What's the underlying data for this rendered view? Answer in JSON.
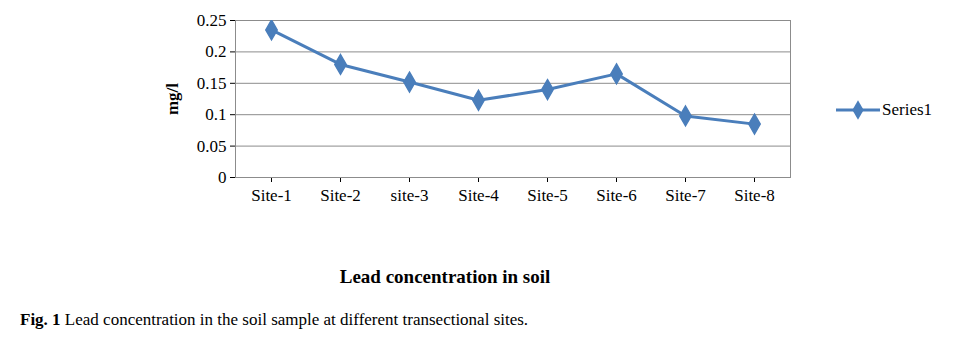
{
  "chart_data": {
    "type": "line",
    "title": "Lead concentration in soil",
    "caption": "Fig. 1 Lead concentration in the soil sample at different transectional sites.",
    "ylabel": "mg/l",
    "categories": [
      "Site-1",
      "Site-2",
      "site-3",
      "Site-4",
      "Site-5",
      "Site-6",
      "Site-7",
      "Site-8"
    ],
    "series": [
      {
        "name": "Series1",
        "color": "#4a7ebb",
        "marker": "diamond",
        "values": [
          0.235,
          0.18,
          0.152,
          0.123,
          0.14,
          0.165,
          0.098,
          0.085
        ]
      }
    ],
    "ylim": [
      0,
      0.25
    ],
    "yticks": [
      0,
      0.05,
      0.1,
      0.15,
      0.2,
      0.25
    ],
    "grid": true,
    "legend": "right"
  }
}
